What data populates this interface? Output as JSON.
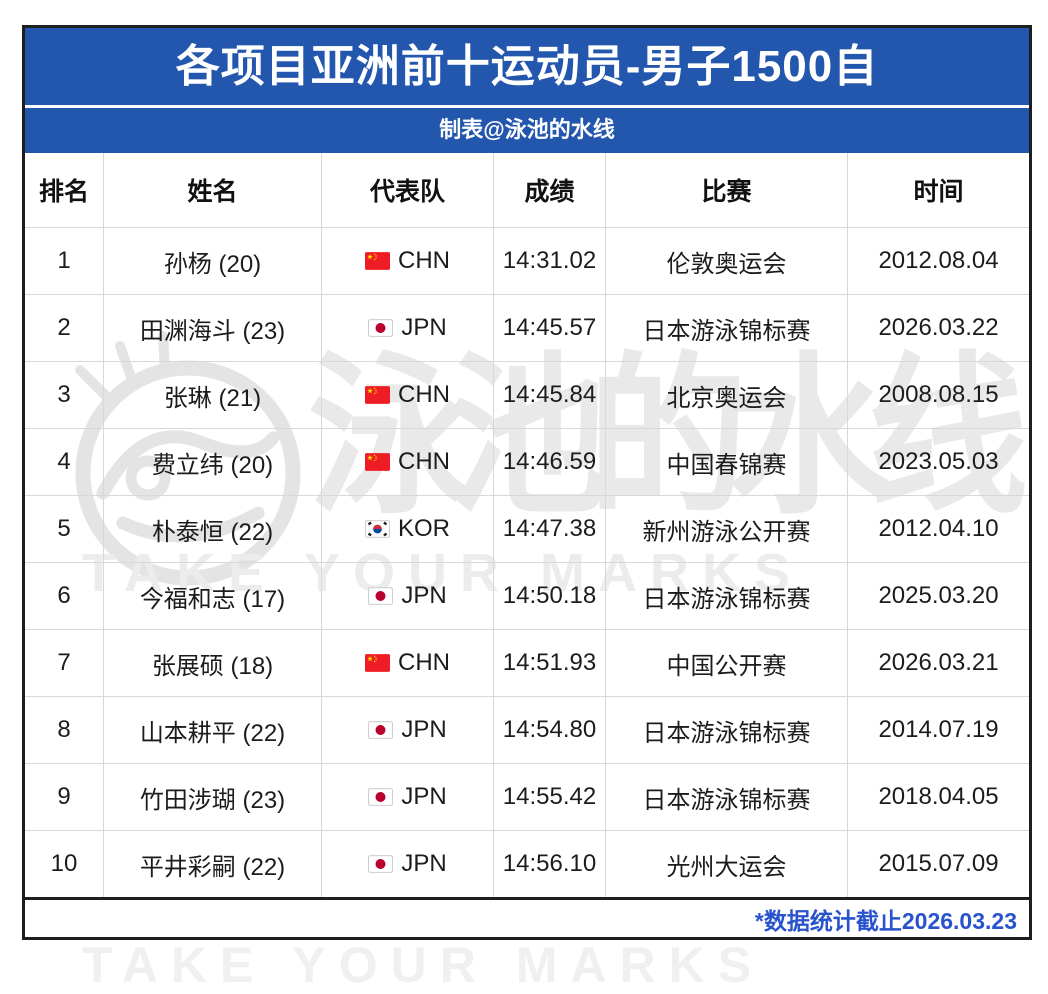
{
  "title": "各项目亚洲前十运动员-男子1500自",
  "subtitle": "制表@泳池的水线",
  "footer_note": "*数据统计截止2026.03.23",
  "watermark": {
    "cn": "泳池的水线",
    "en": "TAKE YOUR MARKS"
  },
  "colors": {
    "header_blue": "#2356ad",
    "footer_blue": "#2853cc",
    "border_dark": "#1e1e1e",
    "grid_line": "#d8d8d8",
    "flag_chn_red": "#ee1c25",
    "flag_star_yellow": "#ffde00",
    "flag_jpn_red": "#bc002d",
    "flag_kor_red": "#cd2e3a",
    "flag_kor_blue": "#0047a0"
  },
  "chart_data": {
    "type": "table",
    "title": "各项目亚洲前十运动员-男子1500自",
    "columns": [
      "排名",
      "姓名",
      "代表队",
      "成绩",
      "比赛",
      "时间"
    ],
    "rows": [
      {
        "rank": "1",
        "name": "孙杨 (20)",
        "team_flag": "chn",
        "team_code": "CHN",
        "result": "14:31.02",
        "meet": "伦敦奥运会",
        "date": "2012.08.04"
      },
      {
        "rank": "2",
        "name": "田渊海斗 (23)",
        "team_flag": "jpn",
        "team_code": "JPN",
        "result": "14:45.57",
        "meet": "日本游泳锦标赛",
        "date": "2026.03.22"
      },
      {
        "rank": "3",
        "name": "张琳 (21)",
        "team_flag": "chn",
        "team_code": "CHN",
        "result": "14:45.84",
        "meet": "北京奥运会",
        "date": "2008.08.15"
      },
      {
        "rank": "4",
        "name": "费立纬 (20)",
        "team_flag": "chn",
        "team_code": "CHN",
        "result": "14:46.59",
        "meet": "中国春锦赛",
        "date": "2023.05.03"
      },
      {
        "rank": "5",
        "name": "朴泰恒 (22)",
        "team_flag": "kor",
        "team_code": "KOR",
        "result": "14:47.38",
        "meet": "新州游泳公开赛",
        "date": "2012.04.10"
      },
      {
        "rank": "6",
        "name": "今福和志 (17)",
        "team_flag": "jpn",
        "team_code": "JPN",
        "result": "14:50.18",
        "meet": "日本游泳锦标赛",
        "date": "2025.03.20"
      },
      {
        "rank": "7",
        "name": "张展硕 (18)",
        "team_flag": "chn",
        "team_code": "CHN",
        "result": "14:51.93",
        "meet": "中国公开赛",
        "date": "2026.03.21"
      },
      {
        "rank": "8",
        "name": "山本耕平 (22)",
        "team_flag": "jpn",
        "team_code": "JPN",
        "result": "14:54.80",
        "meet": "日本游泳锦标赛",
        "date": "2014.07.19"
      },
      {
        "rank": "9",
        "name": "竹田涉瑚 (23)",
        "team_flag": "jpn",
        "team_code": "JPN",
        "result": "14:55.42",
        "meet": "日本游泳锦标赛",
        "date": "2018.04.05"
      },
      {
        "rank": "10",
        "name": "平井彩嗣 (22)",
        "team_flag": "jpn",
        "team_code": "JPN",
        "result": "14:56.10",
        "meet": "光州大运会",
        "date": "2015.07.09"
      }
    ]
  }
}
